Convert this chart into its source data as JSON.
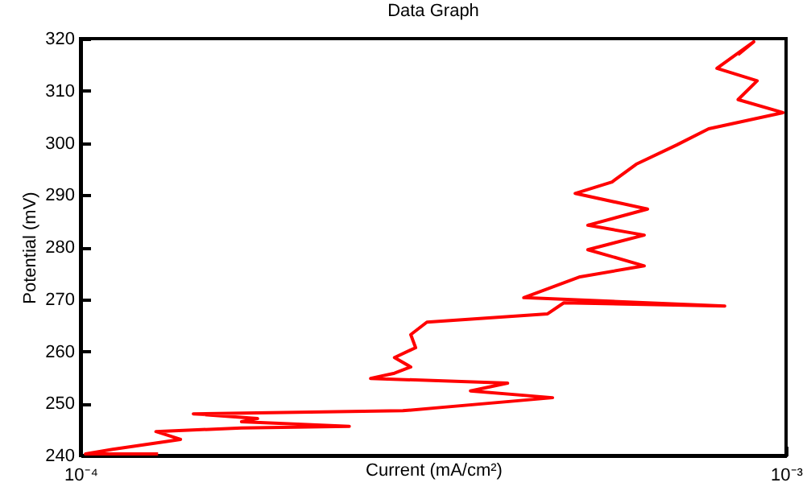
{
  "chart_data": {
    "type": "line",
    "title": "Data Graph",
    "xlabel": "Current (mA/cm²)",
    "ylabel": "Potential (mV)",
    "log": "x",
    "xlim": [
      0.0001,
      0.001
    ],
    "xticks": [
      {
        "value": 0.0001,
        "label": "10⁻⁴"
      },
      {
        "value": 0.001,
        "label": "10⁻³"
      }
    ],
    "ylim": [
      240,
      320
    ],
    "yticks": [
      240,
      250,
      260,
      270,
      280,
      290,
      300,
      310,
      320
    ],
    "grid": false,
    "legend": false,
    "marker": "none",
    "line_style": "solid",
    "x": [
      0.0001288,
      0.0001016,
      0.0001111,
      0.0001386,
      0.0001279,
      0.0001691,
      0.0002404,
      0.0001691,
      0.0001782,
      0.0001445,
      0.0002863,
      0.0004667,
      0.000357,
      0.000403,
      0.0002577,
      0.0002786,
      0.0002938,
      0.0002786,
      0.0002985,
      0.0002938,
      0.0003097,
      0.0004592,
      0.0004842,
      0.0008186,
      0.0004248,
      0.0005105,
      0.0006295,
      0.0005236,
      0.0006295,
      0.0005236,
      0.0006363,
      0.0005024,
      0.0005667,
      0.0006132,
      0.0006998,
      0.0007769,
      0.00099,
      0.000855,
      0.00091,
      0.000798,
      0.0009,
      0.000855
    ],
    "series": [
      {
        "color": "#ff0000",
        "values": [
          240.3,
          240.3,
          241.2,
          243.1,
          244.6,
          245.3,
          245.6,
          246.5,
          247.1,
          248.0,
          248.6,
          251.1,
          252.4,
          253.9,
          254.8,
          255.8,
          257.0,
          258.8,
          260.7,
          263.2,
          265.6,
          267.2,
          269.3,
          268.7,
          270.3,
          274.3,
          276.4,
          279.5,
          282.3,
          284.2,
          287.3,
          290.3,
          292.5,
          295.9,
          299.6,
          302.7,
          305.8,
          308.3,
          311.9,
          314.3,
          319.4,
          316.9
        ]
      }
    ]
  }
}
